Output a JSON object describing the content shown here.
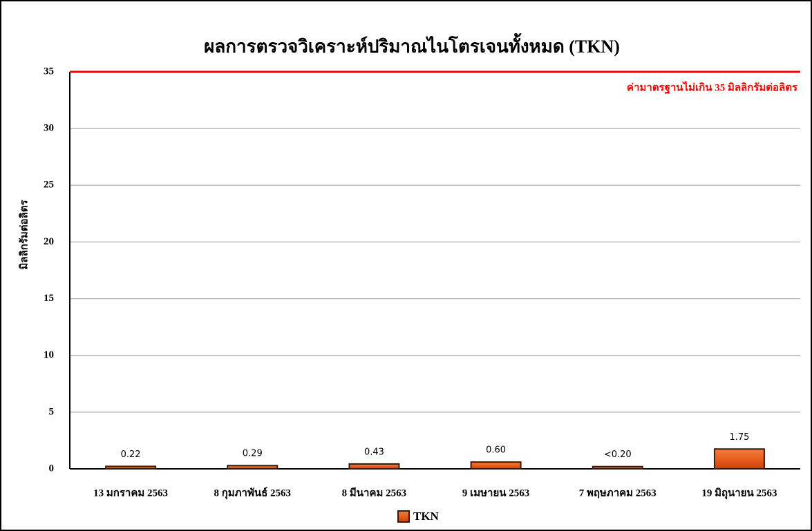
{
  "chart_data": {
    "type": "bar",
    "title": "ผลการตรวจวิเคราะห์ปริมาณไนโตรเจนทั้งหมด (TKN)",
    "y_label": "มิลลิกรัมต่อลิตร",
    "categories": [
      "13 มกราคม 2563",
      "8 กุมภาพันธ์ 2563",
      "8 มีนาคม 2563",
      "9 เมษายน 2563",
      "7 พฤษภาคม 2563",
      "19 มิถุนายน 2563"
    ],
    "series": [
      {
        "name": "TKN",
        "color": "#e8601c",
        "values": [
          0.22,
          0.29,
          0.43,
          0.6,
          0.2,
          1.75
        ],
        "value_labels": [
          "0.22",
          "0.29",
          "0.43",
          "0.60",
          "<0.20",
          "1.75"
        ]
      }
    ],
    "ylim": [
      0,
      35
    ],
    "yticks": [
      0,
      5,
      10,
      15,
      20,
      25,
      30,
      35
    ],
    "grid": true,
    "reference_line": {
      "value": 35,
      "label": "ค่ามาตรฐานไม่เกิน 35 มิลลิกรัมต่อลิตร",
      "color": "#ff0000"
    },
    "legend": "bottom"
  }
}
